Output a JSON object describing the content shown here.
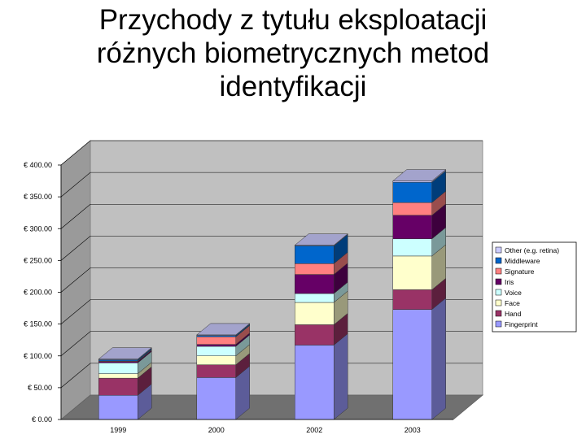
{
  "slide": {
    "title_lines": [
      "Przychody z tytułu eksploatacji",
      "różnych biometrycznych metod",
      "identyfikacji"
    ]
  },
  "chart_data": {
    "type": "bar",
    "stacked": true,
    "three_d": true,
    "categories": [
      "1999",
      "2000",
      "2002",
      "2003"
    ],
    "y_ticks": [
      "€ 0.00",
      "€ 50.00",
      "€ 100.00",
      "€ 150.00",
      "€ 200.00",
      "€ 250.00",
      "€ 300.00",
      "€ 350.00",
      "€ 400.00"
    ],
    "ylim": [
      0,
      400
    ],
    "grid": true,
    "legend_position": "right",
    "series": [
      {
        "name": "Fingerprint",
        "color": "#9999ff",
        "values": [
          38,
          66,
          117,
          173
        ]
      },
      {
        "name": "Hand",
        "color": "#993366",
        "values": [
          27,
          20,
          32,
          31
        ]
      },
      {
        "name": "Face",
        "color": "#ffffcc",
        "values": [
          7,
          14,
          35,
          53
        ]
      },
      {
        "name": "Voice",
        "color": "#ccffff",
        "values": [
          17,
          15,
          14,
          27
        ]
      },
      {
        "name": "Iris",
        "color": "#660066",
        "values": [
          2,
          3,
          30,
          37
        ]
      },
      {
        "name": "Signature",
        "color": "#ff8080",
        "values": [
          1,
          12,
          17,
          20
        ]
      },
      {
        "name": "Middleware",
        "color": "#0066cc",
        "values": [
          2,
          2,
          28,
          32
        ]
      },
      {
        "name": "Other (e.g. retina)",
        "color": "#ccccff",
        "values": [
          1,
          1,
          1,
          2
        ]
      }
    ]
  }
}
